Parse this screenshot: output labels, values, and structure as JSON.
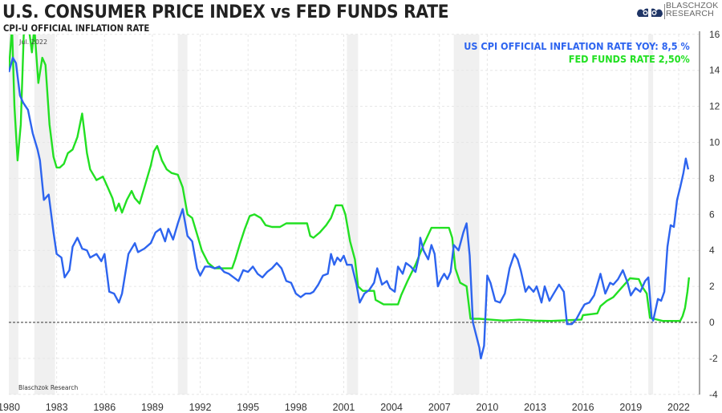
{
  "header": {
    "title": "U.S. CONSUMER PRICE INDEX vs FED FUNDS RATE",
    "subtitle": "CPI-U OFFICIAL INFLATION RATE",
    "logo_line1": "BLASCHZOK",
    "logo_line2": "RESEARCH"
  },
  "colors": {
    "cpi": "#2d64ef",
    "fed": "#22e022",
    "recession": "#f0f0f0",
    "grid": "#e6e6e6",
    "axis": "#777777"
  },
  "chart_data": {
    "type": "line",
    "title": "U.S. CONSUMER PRICE INDEX vs FED FUNDS RATE",
    "subtitle": "CPI-U OFFICIAL INFLATION RATE",
    "xlabel": "",
    "ylabel": "",
    "xlim": [
      1980,
      2023.3
    ],
    "ylim": [
      -4,
      16
    ],
    "x_ticks": [
      1980,
      1983,
      1986,
      1989,
      1992,
      1995,
      1998,
      2001,
      2004,
      2007,
      2010,
      2013,
      2016,
      2019,
      2022
    ],
    "y_ticks": [
      -4,
      -2,
      0,
      2,
      4,
      6,
      8,
      10,
      12,
      14,
      16
    ],
    "y_axis_side": "right",
    "grid": true,
    "zero_line": "dashed",
    "annotation_top": "Jul. 2022",
    "annotation_bottom": "Blaschzok Research",
    "legend_position": "top-right",
    "legend": [
      {
        "label": "US CPI OFFICIAL INFLATION RATE YOY: 8,5 %",
        "series": "cpi"
      },
      {
        "label": "FED FUNDS RATE 2,50%",
        "series": "fed"
      }
    ],
    "recessions": [
      [
        1980.0,
        1980.6
      ],
      [
        1981.6,
        1982.9
      ],
      [
        1990.6,
        1991.2
      ],
      [
        2001.2,
        2001.9
      ],
      [
        2007.9,
        2009.5
      ],
      [
        2020.1,
        2020.4
      ]
    ],
    "series": [
      {
        "name": "US CPI Official Inflation Rate YoY",
        "key": "cpi",
        "points": [
          [
            1980.0,
            13.9
          ],
          [
            1980.25,
            14.7
          ],
          [
            1980.45,
            14.4
          ],
          [
            1980.7,
            12.6
          ],
          [
            1980.9,
            12.2
          ],
          [
            1981.2,
            11.8
          ],
          [
            1981.5,
            10.5
          ],
          [
            1981.8,
            9.6
          ],
          [
            1981.95,
            9.0
          ],
          [
            1982.2,
            6.8
          ],
          [
            1982.5,
            7.1
          ],
          [
            1982.8,
            5.0
          ],
          [
            1983.0,
            3.8
          ],
          [
            1983.3,
            3.6
          ],
          [
            1983.5,
            2.5
          ],
          [
            1983.8,
            2.9
          ],
          [
            1984.0,
            4.2
          ],
          [
            1984.3,
            4.7
          ],
          [
            1984.6,
            4.1
          ],
          [
            1984.9,
            4.0
          ],
          [
            1985.1,
            3.6
          ],
          [
            1985.5,
            3.8
          ],
          [
            1985.8,
            3.4
          ],
          [
            1986.0,
            3.8
          ],
          [
            1986.3,
            1.7
          ],
          [
            1986.6,
            1.6
          ],
          [
            1986.9,
            1.1
          ],
          [
            1987.1,
            1.6
          ],
          [
            1987.5,
            3.8
          ],
          [
            1987.9,
            4.4
          ],
          [
            1988.1,
            3.9
          ],
          [
            1988.5,
            4.1
          ],
          [
            1988.9,
            4.4
          ],
          [
            1989.2,
            5.0
          ],
          [
            1989.5,
            5.2
          ],
          [
            1989.8,
            4.5
          ],
          [
            1990.0,
            5.2
          ],
          [
            1990.3,
            4.6
          ],
          [
            1990.6,
            5.5
          ],
          [
            1990.9,
            6.3
          ],
          [
            1991.2,
            4.8
          ],
          [
            1991.5,
            4.5
          ],
          [
            1991.8,
            3.0
          ],
          [
            1992.0,
            2.6
          ],
          [
            1992.3,
            3.1
          ],
          [
            1992.6,
            3.1
          ],
          [
            1992.9,
            3.0
          ],
          [
            1993.2,
            3.1
          ],
          [
            1993.5,
            2.8
          ],
          [
            1993.8,
            2.7
          ],
          [
            1994.1,
            2.5
          ],
          [
            1994.4,
            2.3
          ],
          [
            1994.7,
            2.9
          ],
          [
            1995.0,
            2.8
          ],
          [
            1995.3,
            3.1
          ],
          [
            1995.6,
            2.7
          ],
          [
            1995.9,
            2.5
          ],
          [
            1996.2,
            2.8
          ],
          [
            1996.5,
            3.0
          ],
          [
            1996.8,
            3.3
          ],
          [
            1997.1,
            3.0
          ],
          [
            1997.4,
            2.3
          ],
          [
            1997.7,
            2.2
          ],
          [
            1998.0,
            1.6
          ],
          [
            1998.3,
            1.4
          ],
          [
            1998.6,
            1.6
          ],
          [
            1998.9,
            1.6
          ],
          [
            1999.1,
            1.7
          ],
          [
            1999.4,
            2.1
          ],
          [
            1999.7,
            2.6
          ],
          [
            2000.0,
            2.7
          ],
          [
            2000.2,
            3.8
          ],
          [
            2000.4,
            3.2
          ],
          [
            2000.6,
            3.6
          ],
          [
            2000.8,
            3.4
          ],
          [
            2001.0,
            3.7
          ],
          [
            2001.2,
            3.2
          ],
          [
            2001.5,
            3.2
          ],
          [
            2001.8,
            2.1
          ],
          [
            2002.0,
            1.1
          ],
          [
            2002.3,
            1.6
          ],
          [
            2002.6,
            1.8
          ],
          [
            2002.9,
            2.2
          ],
          [
            2003.1,
            3.0
          ],
          [
            2003.4,
            2.1
          ],
          [
            2003.7,
            2.3
          ],
          [
            2003.9,
            1.9
          ],
          [
            2004.2,
            1.7
          ],
          [
            2004.4,
            3.1
          ],
          [
            2004.7,
            2.7
          ],
          [
            2004.9,
            3.3
          ],
          [
            2005.2,
            3.1
          ],
          [
            2005.5,
            2.8
          ],
          [
            2005.7,
            3.6
          ],
          [
            2005.8,
            4.7
          ],
          [
            2006.0,
            4.0
          ],
          [
            2006.3,
            3.5
          ],
          [
            2006.5,
            4.3
          ],
          [
            2006.7,
            3.8
          ],
          [
            2006.9,
            2.0
          ],
          [
            2007.1,
            2.4
          ],
          [
            2007.3,
            2.7
          ],
          [
            2007.5,
            2.4
          ],
          [
            2007.7,
            2.8
          ],
          [
            2007.9,
            4.3
          ],
          [
            2008.2,
            4.0
          ],
          [
            2008.5,
            5.0
          ],
          [
            2008.7,
            5.5
          ],
          [
            2008.9,
            3.7
          ],
          [
            2009.1,
            0.0
          ],
          [
            2009.3,
            -0.7
          ],
          [
            2009.5,
            -1.4
          ],
          [
            2009.6,
            -2.0
          ],
          [
            2009.8,
            -1.3
          ],
          [
            2010.0,
            2.6
          ],
          [
            2010.2,
            2.2
          ],
          [
            2010.5,
            1.2
          ],
          [
            2010.8,
            1.1
          ],
          [
            2011.1,
            1.6
          ],
          [
            2011.4,
            3.0
          ],
          [
            2011.7,
            3.8
          ],
          [
            2011.9,
            3.5
          ],
          [
            2012.1,
            2.9
          ],
          [
            2012.4,
            1.7
          ],
          [
            2012.6,
            2.0
          ],
          [
            2012.9,
            1.7
          ],
          [
            2013.1,
            2.0
          ],
          [
            2013.4,
            1.1
          ],
          [
            2013.6,
            2.0
          ],
          [
            2013.9,
            1.2
          ],
          [
            2014.1,
            1.5
          ],
          [
            2014.5,
            2.1
          ],
          [
            2014.8,
            1.7
          ],
          [
            2015.0,
            -0.1
          ],
          [
            2015.3,
            -0.1
          ],
          [
            2015.6,
            0.2
          ],
          [
            2015.9,
            0.7
          ],
          [
            2016.1,
            1.0
          ],
          [
            2016.4,
            1.1
          ],
          [
            2016.7,
            1.5
          ],
          [
            2016.9,
            2.1
          ],
          [
            2017.1,
            2.7
          ],
          [
            2017.4,
            1.6
          ],
          [
            2017.7,
            2.2
          ],
          [
            2017.9,
            2.1
          ],
          [
            2018.2,
            2.4
          ],
          [
            2018.5,
            2.9
          ],
          [
            2018.8,
            2.2
          ],
          [
            2019.0,
            1.5
          ],
          [
            2019.3,
            1.9
          ],
          [
            2019.6,
            1.7
          ],
          [
            2019.9,
            2.3
          ],
          [
            2020.1,
            2.5
          ],
          [
            2020.3,
            0.3
          ],
          [
            2020.4,
            0.1
          ],
          [
            2020.7,
            1.3
          ],
          [
            2020.9,
            1.2
          ],
          [
            2021.1,
            1.7
          ],
          [
            2021.3,
            4.2
          ],
          [
            2021.5,
            5.4
          ],
          [
            2021.7,
            5.3
          ],
          [
            2021.9,
            6.8
          ],
          [
            2022.1,
            7.5
          ],
          [
            2022.3,
            8.3
          ],
          [
            2022.45,
            9.1
          ],
          [
            2022.6,
            8.5
          ]
        ]
      },
      {
        "name": "Fed Funds Rate",
        "key": "fed",
        "points": [
          [
            1980.0,
            14.0
          ],
          [
            1980.2,
            17.2
          ],
          [
            1980.35,
            12.0
          ],
          [
            1980.55,
            9.0
          ],
          [
            1980.75,
            11.0
          ],
          [
            1980.95,
            18.0
          ],
          [
            1981.1,
            16.5
          ],
          [
            1981.25,
            18.5
          ],
          [
            1981.45,
            15.0
          ],
          [
            1981.6,
            19.0
          ],
          [
            1981.85,
            13.3
          ],
          [
            1982.1,
            14.7
          ],
          [
            1982.3,
            14.3
          ],
          [
            1982.55,
            11.0
          ],
          [
            1982.8,
            9.2
          ],
          [
            1983.0,
            8.6
          ],
          [
            1983.2,
            8.6
          ],
          [
            1983.45,
            8.8
          ],
          [
            1983.7,
            9.4
          ],
          [
            1984.0,
            9.6
          ],
          [
            1984.3,
            10.3
          ],
          [
            1984.6,
            11.6
          ],
          [
            1984.9,
            9.4
          ],
          [
            1985.1,
            8.5
          ],
          [
            1985.5,
            7.9
          ],
          [
            1985.9,
            8.1
          ],
          [
            1986.2,
            7.5
          ],
          [
            1986.5,
            6.9
          ],
          [
            1986.7,
            6.2
          ],
          [
            1986.9,
            6.6
          ],
          [
            1987.1,
            6.1
          ],
          [
            1987.4,
            6.8
          ],
          [
            1987.7,
            7.3
          ],
          [
            1987.9,
            6.9
          ],
          [
            1988.2,
            6.6
          ],
          [
            1988.5,
            7.5
          ],
          [
            1988.9,
            8.7
          ],
          [
            1989.1,
            9.5
          ],
          [
            1989.3,
            9.8
          ],
          [
            1989.6,
            9.0
          ],
          [
            1989.9,
            8.5
          ],
          [
            1990.2,
            8.3
          ],
          [
            1990.6,
            8.2
          ],
          [
            1990.9,
            7.5
          ],
          [
            1991.2,
            6.0
          ],
          [
            1991.5,
            5.8
          ],
          [
            1991.9,
            4.6
          ],
          [
            1992.1,
            4.0
          ],
          [
            1992.5,
            3.3
          ],
          [
            1992.9,
            3.0
          ],
          [
            1993.3,
            3.0
          ],
          [
            1993.7,
            3.0
          ],
          [
            1994.0,
            3.0
          ],
          [
            1994.2,
            3.5
          ],
          [
            1994.5,
            4.4
          ],
          [
            1994.8,
            5.2
          ],
          [
            1995.1,
            5.9
          ],
          [
            1995.4,
            6.0
          ],
          [
            1995.8,
            5.8
          ],
          [
            1996.1,
            5.4
          ],
          [
            1996.5,
            5.3
          ],
          [
            1997.0,
            5.3
          ],
          [
            1997.4,
            5.5
          ],
          [
            1997.8,
            5.5
          ],
          [
            1998.3,
            5.5
          ],
          [
            1998.7,
            5.5
          ],
          [
            1998.9,
            4.8
          ],
          [
            1999.1,
            4.7
          ],
          [
            1999.5,
            5.0
          ],
          [
            1999.9,
            5.4
          ],
          [
            2000.2,
            5.8
          ],
          [
            2000.5,
            6.5
          ],
          [
            2000.9,
            6.5
          ],
          [
            2001.1,
            6.0
          ],
          [
            2001.4,
            4.5
          ],
          [
            2001.7,
            3.5
          ],
          [
            2001.9,
            2.0
          ],
          [
            2002.2,
            1.75
          ],
          [
            2002.9,
            1.75
          ],
          [
            2003.0,
            1.25
          ],
          [
            2003.5,
            1.0
          ],
          [
            2004.4,
            1.0
          ],
          [
            2004.6,
            1.5
          ],
          [
            2005.0,
            2.3
          ],
          [
            2005.5,
            3.2
          ],
          [
            2006.0,
            4.3
          ],
          [
            2006.5,
            5.25
          ],
          [
            2007.6,
            5.25
          ],
          [
            2007.8,
            4.7
          ],
          [
            2008.0,
            3.0
          ],
          [
            2008.3,
            2.2
          ],
          [
            2008.7,
            2.0
          ],
          [
            2008.95,
            0.2
          ],
          [
            2009.5,
            0.2
          ],
          [
            2010.2,
            0.15
          ],
          [
            2011.0,
            0.1
          ],
          [
            2012.0,
            0.15
          ],
          [
            2013.0,
            0.1
          ],
          [
            2014.0,
            0.08
          ],
          [
            2015.0,
            0.12
          ],
          [
            2015.9,
            0.15
          ],
          [
            2016.0,
            0.4
          ],
          [
            2016.9,
            0.5
          ],
          [
            2017.1,
            0.9
          ],
          [
            2017.5,
            1.2
          ],
          [
            2017.9,
            1.4
          ],
          [
            2018.3,
            1.8
          ],
          [
            2018.7,
            2.2
          ],
          [
            2018.95,
            2.45
          ],
          [
            2019.5,
            2.4
          ],
          [
            2019.7,
            2.0
          ],
          [
            2020.0,
            1.6
          ],
          [
            2020.2,
            0.25
          ],
          [
            2021.0,
            0.08
          ],
          [
            2022.1,
            0.08
          ],
          [
            2022.25,
            0.35
          ],
          [
            2022.4,
            0.8
          ],
          [
            2022.55,
            1.7
          ],
          [
            2022.65,
            2.5
          ]
        ]
      }
    ]
  }
}
